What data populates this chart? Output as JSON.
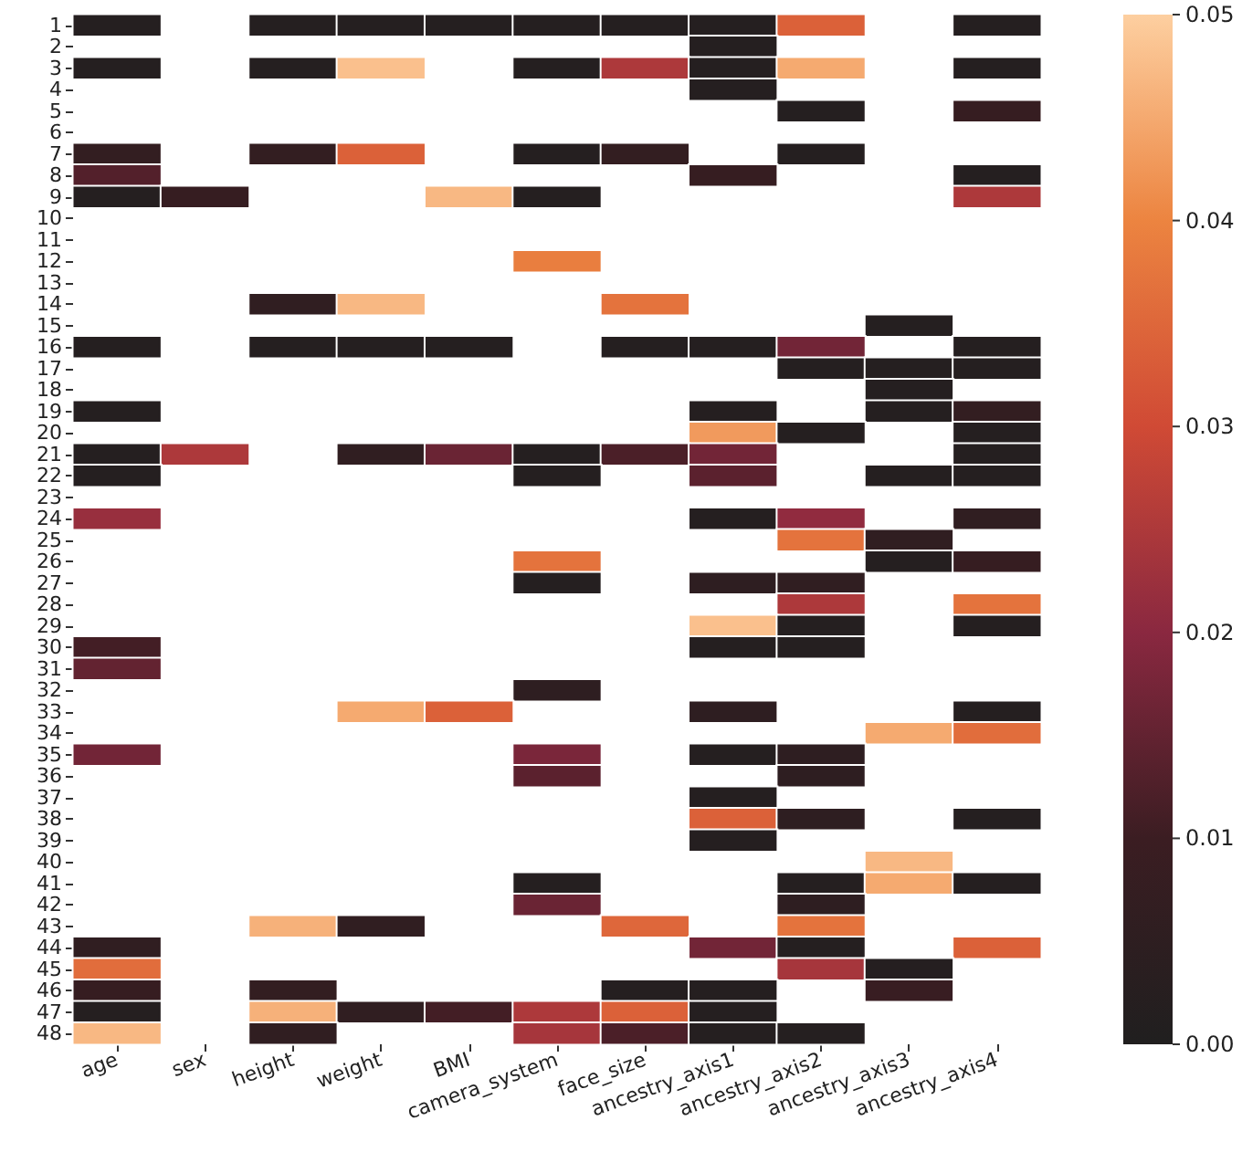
{
  "chart_data": {
    "type": "heatmap",
    "categories": [
      "age",
      "sex",
      "height",
      "weight",
      "BMI",
      "camera_system",
      "face_size",
      "ancestry_axis1",
      "ancestry_axis2",
      "ancestry_axis3",
      "ancestry_axis4"
    ],
    "y_categories": [
      "1",
      "2",
      "3",
      "4",
      "5",
      "6",
      "7",
      "8",
      "9",
      "10",
      "11",
      "12",
      "13",
      "14",
      "15",
      "16",
      "17",
      "18",
      "19",
      "20",
      "21",
      "22",
      "23",
      "24",
      "25",
      "26",
      "27",
      "28",
      "29",
      "30",
      "31",
      "32",
      "33",
      "34",
      "35",
      "36",
      "37",
      "38",
      "39",
      "40",
      "41",
      "42",
      "43",
      "44",
      "45",
      "46",
      "47",
      "48"
    ],
    "cells": [
      [
        0.002,
        null,
        0.002,
        0.002,
        0.002,
        0.002,
        0.002,
        0.002,
        0.034,
        null,
        0.002
      ],
      [
        null,
        null,
        null,
        null,
        null,
        null,
        null,
        0.002,
        null,
        null,
        null
      ],
      [
        0.002,
        null,
        0.002,
        0.048,
        null,
        0.002,
        0.025,
        0.002,
        0.045,
        null,
        0.002
      ],
      [
        null,
        null,
        null,
        null,
        null,
        null,
        null,
        0.002,
        null,
        null,
        null
      ],
      [
        null,
        null,
        null,
        null,
        null,
        null,
        null,
        null,
        0.002,
        null,
        0.008
      ],
      [
        null,
        null,
        null,
        null,
        null,
        null,
        null,
        null,
        null,
        null,
        null
      ],
      [
        0.007,
        null,
        0.007,
        0.034,
        null,
        0.002,
        0.007,
        null,
        0.002,
        null,
        null
      ],
      [
        0.013,
        null,
        null,
        null,
        null,
        null,
        null,
        0.008,
        null,
        null,
        0.002
      ],
      [
        0.002,
        0.008,
        null,
        null,
        0.047,
        0.002,
        null,
        null,
        null,
        null,
        0.025
      ],
      [
        null,
        null,
        null,
        null,
        null,
        null,
        null,
        null,
        null,
        null,
        null
      ],
      [
        null,
        null,
        null,
        null,
        null,
        null,
        null,
        null,
        null,
        null,
        null
      ],
      [
        null,
        null,
        null,
        null,
        null,
        0.039,
        null,
        null,
        null,
        null,
        null
      ],
      [
        null,
        null,
        null,
        null,
        null,
        null,
        null,
        null,
        null,
        null,
        null
      ],
      [
        null,
        null,
        0.006,
        0.047,
        null,
        null,
        0.037,
        null,
        null,
        null,
        null
      ],
      [
        null,
        null,
        null,
        null,
        null,
        null,
        null,
        null,
        null,
        0.002,
        null
      ],
      [
        0.002,
        null,
        0.002,
        0.002,
        0.002,
        null,
        0.002,
        0.002,
        0.017,
        null,
        0.002
      ],
      [
        null,
        null,
        null,
        null,
        null,
        null,
        null,
        null,
        0.002,
        0.002,
        0.002
      ],
      [
        null,
        null,
        null,
        null,
        null,
        null,
        null,
        null,
        null,
        0.002,
        null
      ],
      [
        0.002,
        null,
        null,
        null,
        null,
        null,
        null,
        0.002,
        null,
        0.002,
        0.007
      ],
      [
        null,
        null,
        null,
        null,
        null,
        null,
        null,
        0.043,
        0.002,
        null,
        0.002
      ],
      [
        0.002,
        0.025,
        null,
        0.006,
        0.016,
        0.002,
        0.012,
        0.017,
        null,
        null,
        0.002
      ],
      [
        0.002,
        null,
        null,
        null,
        null,
        0.002,
        null,
        0.014,
        null,
        0.002,
        0.002
      ],
      [
        null,
        null,
        null,
        null,
        null,
        null,
        null,
        null,
        null,
        null,
        null
      ],
      [
        0.022,
        null,
        null,
        null,
        null,
        null,
        null,
        0.002,
        0.021,
        null,
        0.006
      ],
      [
        null,
        null,
        null,
        null,
        null,
        null,
        null,
        null,
        0.037,
        0.006,
        null
      ],
      [
        null,
        null,
        null,
        null,
        null,
        0.037,
        null,
        null,
        null,
        0.002,
        0.008
      ],
      [
        null,
        null,
        null,
        null,
        null,
        0.002,
        null,
        0.005,
        0.006,
        null,
        null
      ],
      [
        null,
        null,
        null,
        null,
        null,
        null,
        null,
        null,
        0.025,
        null,
        0.037
      ],
      [
        null,
        null,
        null,
        null,
        null,
        null,
        null,
        0.048,
        0.002,
        null,
        0.002
      ],
      [
        0.011,
        null,
        null,
        null,
        null,
        null,
        null,
        0.002,
        0.002,
        null,
        null
      ],
      [
        0.015,
        null,
        null,
        null,
        null,
        null,
        null,
        null,
        null,
        null,
        null
      ],
      [
        null,
        null,
        null,
        null,
        null,
        0.005,
        null,
        null,
        null,
        null,
        null
      ],
      [
        null,
        null,
        null,
        0.045,
        0.034,
        null,
        null,
        0.005,
        null,
        null,
        0.002
      ],
      [
        null,
        null,
        null,
        null,
        null,
        null,
        null,
        null,
        null,
        0.045,
        0.036
      ],
      [
        0.017,
        null,
        null,
        null,
        null,
        0.018,
        null,
        0.002,
        0.005,
        null,
        null
      ],
      [
        null,
        null,
        null,
        null,
        null,
        0.014,
        null,
        null,
        0.005,
        null,
        null
      ],
      [
        null,
        null,
        null,
        null,
        null,
        null,
        null,
        0.002,
        null,
        null,
        null
      ],
      [
        null,
        null,
        null,
        null,
        null,
        null,
        null,
        0.034,
        0.005,
        null,
        0.002
      ],
      [
        null,
        null,
        null,
        null,
        null,
        null,
        null,
        0.002,
        null,
        null,
        null
      ],
      [
        null,
        null,
        null,
        null,
        null,
        null,
        null,
        null,
        null,
        0.047,
        null
      ],
      [
        null,
        null,
        null,
        null,
        null,
        0.002,
        null,
        null,
        0.002,
        0.045,
        0.002
      ],
      [
        null,
        null,
        null,
        null,
        null,
        0.016,
        null,
        null,
        0.005,
        null,
        null
      ],
      [
        null,
        null,
        0.046,
        0.006,
        null,
        null,
        0.035,
        null,
        0.037,
        null,
        null
      ],
      [
        0.006,
        null,
        null,
        null,
        null,
        null,
        null,
        0.017,
        0.002,
        null,
        0.034
      ],
      [
        0.036,
        null,
        null,
        null,
        null,
        null,
        null,
        null,
        0.024,
        0.002,
        null
      ],
      [
        0.008,
        null,
        0.007,
        null,
        null,
        null,
        0.002,
        0.002,
        null,
        0.009,
        null
      ],
      [
        0.002,
        null,
        0.046,
        0.006,
        0.011,
        0.025,
        0.034,
        0.002,
        null,
        null,
        null
      ],
      [
        0.047,
        null,
        0.006,
        null,
        null,
        0.024,
        0.012,
        0.002,
        0.002,
        null,
        null
      ]
    ],
    "clim": [
      0,
      0.05
    ],
    "cticks": [
      {
        "value": 0,
        "label": "0.00"
      },
      0.01,
      0.02,
      0.03,
      0.04,
      0.05
    ]
  }
}
